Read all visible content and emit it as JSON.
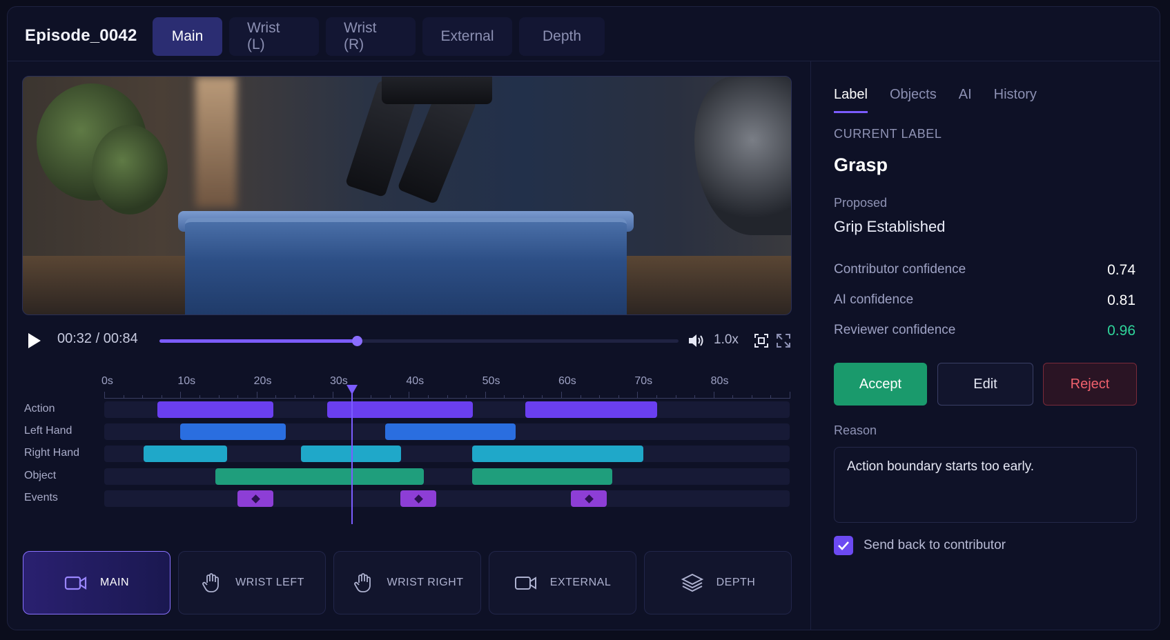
{
  "episode": {
    "title": "Episode_0042"
  },
  "view_tabs": [
    {
      "label": "Main",
      "active": true
    },
    {
      "label": "Wrist (L)",
      "active": false
    },
    {
      "label": "Wrist (R)",
      "active": false
    },
    {
      "label": "External",
      "active": false
    },
    {
      "label": "Depth",
      "active": false
    }
  ],
  "player": {
    "time": "00:32 / 00:84",
    "current_seconds": 32,
    "duration_seconds": 84,
    "speed": "1.0x",
    "icons": [
      "play-icon",
      "volume-icon",
      "fit-screen-icon",
      "fullscreen-icon"
    ],
    "accent": "#7b5cff"
  },
  "timeline": {
    "ticks": [
      "0s",
      "10s",
      "20s",
      "30s",
      "40s",
      "50s",
      "60s",
      "70s",
      "80s"
    ],
    "max_seconds": 84,
    "playhead_seconds": 32.5,
    "tracks": [
      {
        "label": "Action",
        "kind": "action",
        "segments": [
          [
            7,
            22.2
          ],
          [
            29.3,
            48.4
          ],
          [
            55.3,
            72.6
          ]
        ]
      },
      {
        "label": "Left Hand",
        "kind": "left",
        "segments": [
          [
            10,
            23.8
          ],
          [
            36.9,
            54
          ]
        ]
      },
      {
        "label": "Right Hand",
        "kind": "right",
        "segments": [
          [
            5.2,
            16.1
          ],
          [
            25.8,
            39
          ],
          [
            48.3,
            70.8
          ]
        ]
      },
      {
        "label": "Object",
        "kind": "object",
        "segments": [
          [
            14.6,
            42
          ],
          [
            48.3,
            66.7
          ]
        ]
      },
      {
        "label": "Events",
        "kind": "event",
        "segments": [
          [
            17.5,
            22.2
          ],
          [
            38.9,
            43.6
          ],
          [
            61.3,
            66
          ]
        ]
      }
    ],
    "colors": {
      "action": "#6a3ff0",
      "left": "#2a6ee0",
      "right": "#1fa8c9",
      "object": "#1f9e7c",
      "event": "#8d3ed6"
    }
  },
  "cameras": [
    {
      "label": "MAIN",
      "icon": "video-camera-icon",
      "active": true
    },
    {
      "label": "WRIST LEFT",
      "icon": "hand-icon",
      "active": false
    },
    {
      "label": "WRIST RIGHT",
      "icon": "hand-icon",
      "active": false
    },
    {
      "label": "EXTERNAL",
      "icon": "video-camera-icon",
      "active": false
    },
    {
      "label": "DEPTH",
      "icon": "layers-icon",
      "active": false
    }
  ],
  "side_tabs": [
    {
      "label": "Label",
      "active": true
    },
    {
      "label": "Objects",
      "active": false
    },
    {
      "label": "AI",
      "active": false
    },
    {
      "label": "History",
      "active": false
    }
  ],
  "label_panel": {
    "current_label_heading": "CURRENT LABEL",
    "current_label": "Grasp",
    "proposed_heading": "Proposed",
    "proposed": "Grip Established",
    "metrics": [
      {
        "name": "Contributor confidence",
        "value": "0.74",
        "good": false
      },
      {
        "name": "AI confidence",
        "value": "0.81",
        "good": false
      },
      {
        "name": "Reviewer confidence",
        "value": "0.96",
        "good": true
      }
    ],
    "buttons": {
      "accept": "Accept",
      "edit": "Edit",
      "reject": "Reject"
    },
    "reason_heading": "Reason",
    "reason": "Action boundary starts too early.",
    "send_back_label": "Send back to contributor",
    "send_back_checked": true
  }
}
